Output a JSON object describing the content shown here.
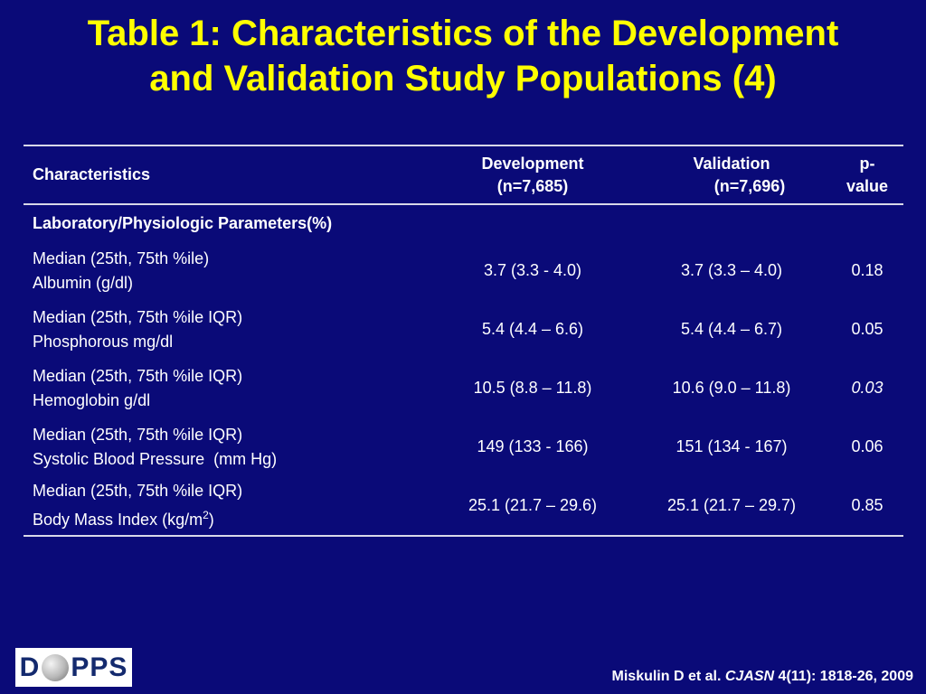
{
  "slide": {
    "title_line1": "Table 1:  Characteristics of the Development",
    "title_line2": "and Validation Study Populations (4)"
  },
  "table": {
    "headers": {
      "characteristics": "Characteristics",
      "development_line1": "Development",
      "development_line2": "(n=7,685)",
      "validation_line1": "Validation",
      "validation_line2": "(n=7,696)",
      "p_value": "p-value"
    },
    "section_label": "Laboratory/Physiologic Parameters(%)",
    "rows": [
      {
        "label_line1": "Median (25th, 75th %ile)",
        "label_line2": "Albumin (g/dl)",
        "development": "3.7 (3.3 - 4.0)",
        "validation": "3.7 (3.3 – 4.0)",
        "p_value": "0.18"
      },
      {
        "label_line1": "Median (25th, 75th %ile IQR)",
        "label_line2": "Phosphorous mg/dl",
        "development": "5.4 (4.4 – 6.6)",
        "validation": "5.4 (4.4 – 6.7)",
        "p_value": "0.05"
      },
      {
        "label_line1": "Median (25th, 75th %ile IQR)",
        "label_line2": "Hemoglobin g/dl",
        "development": "10.5 (8.8 – 11.8)",
        "validation": "10.6 (9.0 – 11.8)",
        "p_value": "0.03"
      },
      {
        "label_line1": "Median (25th, 75th %ile IQR)",
        "label_line2": "Systolic Blood Pressure  (mm Hg)",
        "development": "149 (133 - 166)",
        "validation": "151 (134 - 167)",
        "p_value": "0.06"
      },
      {
        "label_line1": "Median (25th, 75th %ile IQR)",
        "label_line2": "Body Mass Index (kg/m",
        "label_superscript": "2",
        "label_suffix": ")",
        "development": "25.1 (21.7 – 29.6)",
        "validation": "25.1 (21.7 – 29.7)",
        "p_value": "0.85"
      }
    ]
  },
  "logo": {
    "letter_left": "D",
    "letters_right": "PPS",
    "globe_icon": "globe-icon"
  },
  "citation": {
    "authors": "Miskulin D et al. ",
    "journal": "CJASN",
    "details": " 4(11): 1818-26, 2009"
  },
  "colors": {
    "background": "#0a0a78",
    "title": "#ffff00",
    "text": "#ffffff",
    "rule": "#d8d8e8"
  }
}
